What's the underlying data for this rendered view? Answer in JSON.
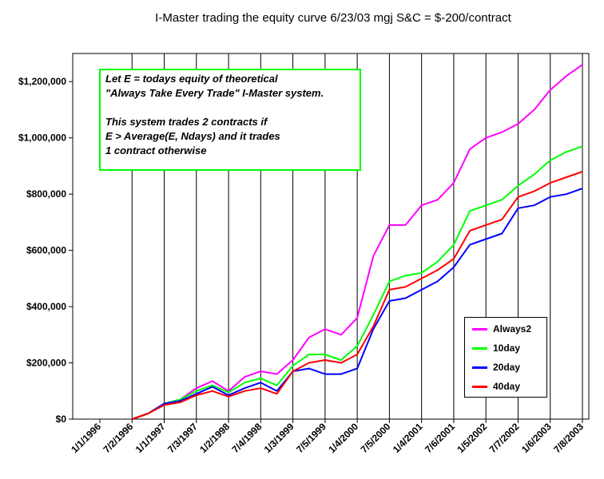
{
  "chart_data": {
    "type": "line",
    "title": "I-Master trading the equity curve 6/23/03 mgj     S&C = $-200/contract",
    "xlabel": "",
    "ylabel": "",
    "ylim": [
      0,
      1300000
    ],
    "y_ticks": [
      0,
      200000,
      400000,
      600000,
      800000,
      1000000,
      1200000
    ],
    "y_tick_labels": [
      "$0",
      "$200,000",
      "$400,000",
      "$600,000",
      "$800,000",
      "$1,000,000",
      "$1,200,000"
    ],
    "x_tick_labels": [
      "1/1/1996",
      "7/2/1996",
      "1/1/1997",
      "7/3/1997",
      "1/2/1998",
      "7/4/1998",
      "1/3/1999",
      "7/5/1999",
      "1/4/2000",
      "7/5/2000",
      "1/4/2001",
      "7/6/2001",
      "1/5/2002",
      "7/7/2002",
      "1/6/2003",
      "7/8/2003"
    ],
    "x_positions": [
      0,
      0.5,
      1,
      1.5,
      2,
      2.5,
      3,
      3.5,
      4,
      4.5,
      5,
      5.5,
      6,
      6.5,
      7,
      7.5
    ],
    "x_index": [
      0.5,
      0.75,
      1,
      1.25,
      1.5,
      1.75,
      2,
      2.25,
      2.5,
      2.75,
      3,
      3.25,
      3.5,
      3.75,
      4,
      4.25,
      4.5,
      4.75,
      5,
      5.25,
      5.5,
      5.75,
      6,
      6.25,
      6.5,
      6.75,
      7,
      7.25,
      7.5
    ],
    "series": [
      {
        "name": "Always2",
        "color": "#ff00ff",
        "values": [
          0,
          20000,
          55000,
          70000,
          110000,
          135000,
          100000,
          150000,
          170000,
          160000,
          210000,
          290000,
          320000,
          300000,
          360000,
          580000,
          690000,
          690000,
          760000,
          780000,
          840000,
          960000,
          1000000,
          1020000,
          1050000,
          1100000,
          1170000,
          1220000,
          1260000
        ]
      },
      {
        "name": "10day",
        "color": "#00ff00",
        "values": [
          0,
          20000,
          55000,
          70000,
          100000,
          120000,
          95000,
          130000,
          145000,
          120000,
          190000,
          230000,
          230000,
          210000,
          260000,
          370000,
          490000,
          510000,
          520000,
          560000,
          620000,
          740000,
          760000,
          780000,
          830000,
          870000,
          920000,
          950000,
          970000
        ]
      },
      {
        "name": "20day",
        "color": "#0000ff",
        "values": [
          0,
          20000,
          55000,
          65000,
          90000,
          115000,
          85000,
          110000,
          130000,
          100000,
          170000,
          180000,
          160000,
          160000,
          180000,
          320000,
          420000,
          430000,
          460000,
          490000,
          540000,
          620000,
          640000,
          660000,
          750000,
          760000,
          790000,
          800000,
          820000
        ]
      },
      {
        "name": "40day",
        "color": "#ff0000",
        "values": [
          0,
          20000,
          50000,
          60000,
          85000,
          100000,
          80000,
          100000,
          110000,
          90000,
          170000,
          200000,
          210000,
          200000,
          230000,
          330000,
          460000,
          470000,
          500000,
          530000,
          570000,
          670000,
          690000,
          710000,
          790000,
          810000,
          840000,
          860000,
          880000
        ]
      }
    ],
    "legend_position": "bottom-right",
    "grid": true
  },
  "annotation": {
    "lines": [
      "Let E = todays equity of theoretical",
      "\"Always Take Every Trade\" I-Master system.",
      "This system trades 2 contracts if",
      "E > Average(E, Ndays) and it trades",
      "1 contract otherwise"
    ]
  }
}
